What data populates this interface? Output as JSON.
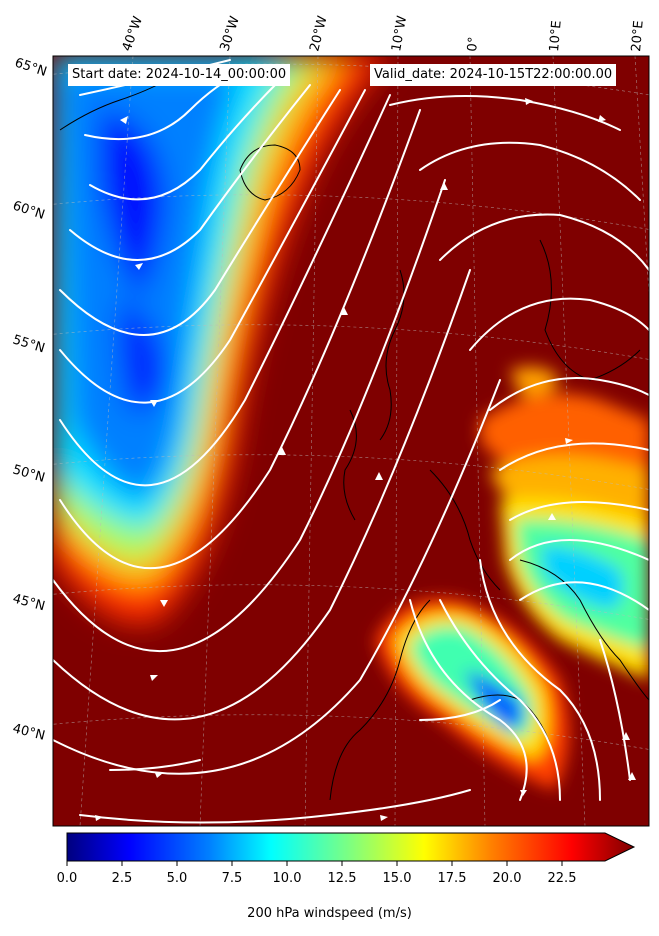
{
  "header": {
    "start_label": "Start date: 2024-10-14_00:00:00",
    "valid_label": "Valid_date: 2024-10-15T22:00:00.00"
  },
  "map": {
    "projection": "lambert-conformal",
    "variable": "200 hPa windspeed",
    "overlay": "streamlines (white)",
    "lon_labels": [
      "40°W",
      "30°W",
      "20°W",
      "10°W",
      "0°",
      "10°E",
      "20°E"
    ],
    "lat_labels": [
      "65°N",
      "60°N",
      "55°N",
      "50°N",
      "45°N",
      "40°N"
    ],
    "coastline_color": "#000000",
    "streamline_color": "#ffffff"
  },
  "colorbar": {
    "label": "200 hPa windspeed (m/s)",
    "ticks": [
      "0.0",
      "2.5",
      "5.0",
      "7.5",
      "10.0",
      "12.5",
      "15.0",
      "17.5",
      "20.0",
      "22.5"
    ],
    "min": 0,
    "max": 25,
    "extend": "max",
    "colormap": "jet",
    "colors": [
      "#00007f",
      "#0000ff",
      "#007fff",
      "#00ffff",
      "#7fff7f",
      "#ffff00",
      "#ff7f00",
      "#ff0000",
      "#7f0000"
    ]
  }
}
